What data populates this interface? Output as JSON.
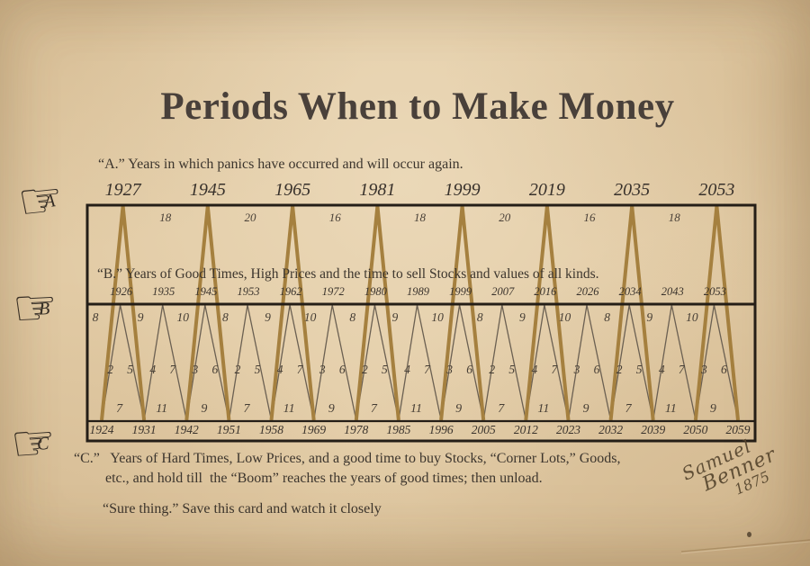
{
  "page": {
    "title": "Periods When to Make Money",
    "section_a_caption": "“A.” Years in which panics have occurred and will occur again.",
    "section_b_caption": "“B.” Years of Good Times, High Prices and the time to sell Stocks and values of all kinds.",
    "section_c_caption_line1": "“C.”   Years of Hard Times, Low Prices, and a good time to buy Stocks, “Corner Lots,” Goods,",
    "section_c_caption_line2": "etc., and hold till  the “Boom” reaches the years of good times; then unload.",
    "footer_note": "“Sure thing.” Save this card and watch it closely",
    "signature": {
      "first": "Samuel",
      "last": "Benner",
      "year": "1875"
    },
    "pointers": [
      {
        "letter": "A"
      },
      {
        "letter": "B"
      },
      {
        "letter": "C"
      }
    ]
  },
  "chart_data": {
    "type": "line",
    "title": "Benner cycle chart of panic, good-times and hard-times years",
    "panic_years": [
      1927,
      1945,
      1965,
      1981,
      1999,
      2019,
      2035,
      2053
    ],
    "panic_intervals": [
      18,
      20,
      16,
      18,
      20,
      16,
      18
    ],
    "good_times_years": [
      1926,
      1935,
      1945,
      1953,
      1962,
      1972,
      1980,
      1989,
      1999,
      2007,
      2016,
      2026,
      2034,
      2043,
      2053
    ],
    "good_times_intervals": [
      8,
      9,
      10,
      8,
      9,
      10,
      8,
      9,
      10,
      8,
      9,
      10,
      8,
      9,
      10
    ],
    "good_times_sub_pairs": [
      [
        2,
        5
      ],
      [
        4,
        7
      ],
      [
        3,
        6
      ],
      [
        2,
        5
      ],
      [
        4,
        7
      ],
      [
        3,
        6
      ],
      [
        2,
        5
      ],
      [
        4,
        7
      ],
      [
        3,
        6
      ],
      [
        2,
        5
      ],
      [
        4,
        7
      ],
      [
        3,
        6
      ],
      [
        2,
        5
      ],
      [
        4,
        7
      ],
      [
        3,
        6
      ]
    ],
    "hard_times_years": [
      1924,
      1931,
      1942,
      1951,
      1958,
      1969,
      1978,
      1985,
      1996,
      2005,
      2012,
      2023,
      2032,
      2039,
      2050,
      2059
    ],
    "hard_times_intervals": [
      7,
      11,
      9,
      7,
      11,
      9,
      7,
      11,
      9,
      7,
      11,
      9,
      7,
      11,
      9
    ],
    "legend_position": "none",
    "grid": false,
    "colors": {
      "paper": "#e2cba5",
      "panic_line": "#a5803f",
      "cycle_line": "#6b6052",
      "frame": "#241e17",
      "text": "#3a332c"
    }
  }
}
